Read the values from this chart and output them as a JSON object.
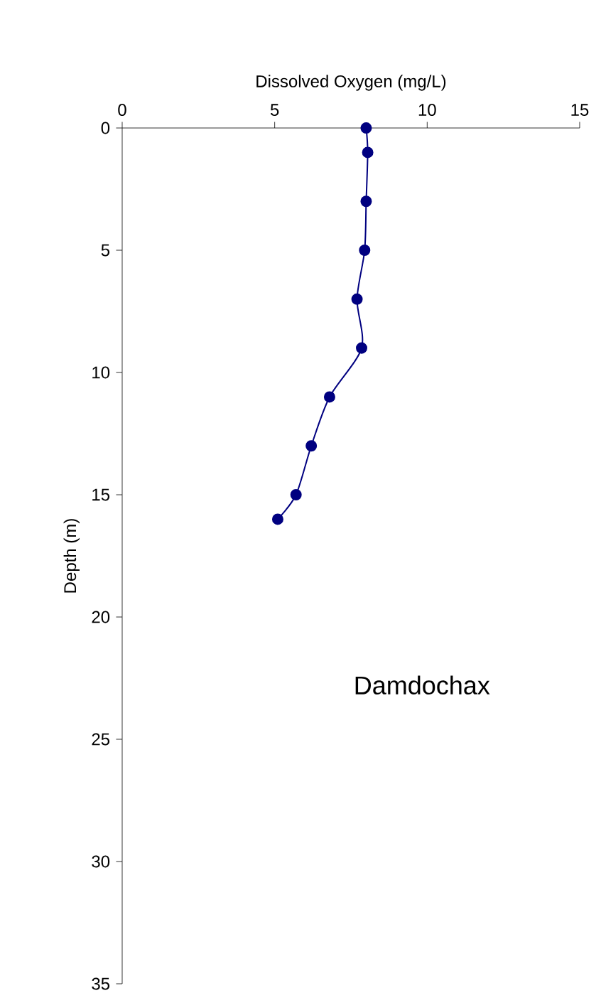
{
  "chart_data": {
    "type": "line",
    "xlabel": "Dissolved Oxygen (mg/L)",
    "ylabel": "Depth (m)",
    "x": [
      8.0,
      8.05,
      8.0,
      7.95,
      7.7,
      7.85,
      6.8,
      6.2,
      5.7,
      5.1
    ],
    "values": [
      0,
      1,
      3,
      5,
      7,
      9,
      11,
      13,
      15,
      16
    ],
    "color": "#000080",
    "marker": "circle",
    "line_style": "solid",
    "xlim": [
      0,
      15
    ],
    "ylim": [
      35,
      0
    ],
    "xticks": [
      0,
      5,
      10,
      15
    ],
    "yticks": [
      0,
      5,
      10,
      15,
      20,
      25,
      30,
      35
    ],
    "annotations": [
      "Damdochax"
    ]
  }
}
